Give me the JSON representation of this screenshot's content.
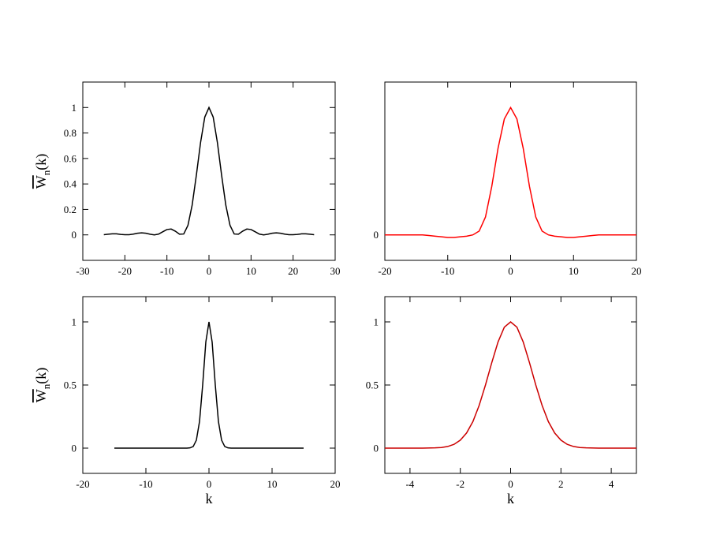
{
  "chart_data": [
    {
      "type": "line",
      "color": "#000000",
      "x": [
        -25,
        -24,
        -23,
        -22,
        -21,
        -20,
        -19,
        -18,
        -17,
        -16,
        -15,
        -14,
        -13,
        -12,
        -11,
        -10,
        -9,
        -8,
        -7,
        -6,
        -5,
        -4,
        -3,
        -2,
        -1,
        0,
        1,
        2,
        3,
        4,
        5,
        6,
        7,
        8,
        9,
        10,
        11,
        12,
        13,
        14,
        15,
        16,
        17,
        18,
        19,
        20,
        21,
        22,
        23,
        24,
        25
      ],
      "values": [
        0.001,
        0.005,
        0.008,
        0.008,
        0.004,
        0.001,
        0.001,
        0.006,
        0.013,
        0.016,
        0.013,
        0.005,
        0,
        0.006,
        0.024,
        0.042,
        0.046,
        0.029,
        0.005,
        0.007,
        0.075,
        0.234,
        0.469,
        0.725,
        0.925,
        1,
        0.925,
        0.725,
        0.469,
        0.234,
        0.075,
        0.007,
        0.005,
        0.029,
        0.046,
        0.042,
        0.024,
        0.006,
        0,
        0.005,
        0.013,
        0.016,
        0.013,
        0.006,
        0.001,
        0.001,
        0.004,
        0.008,
        0.008,
        0.005,
        0.001
      ],
      "xlim": [
        -30,
        30
      ],
      "xticks": [
        -30,
        -20,
        -10,
        0,
        10,
        20,
        30
      ],
      "ylim": [
        -0.2,
        1.2
      ],
      "yticks": [
        0,
        0.2,
        0.4,
        0.6,
        0.8,
        1
      ],
      "ylabel": "W",
      "ylabel_sub": "n",
      "ylabel_suffix": "(k)"
    },
    {
      "type": "line",
      "color": "#ff0000",
      "x": [
        -20,
        -19,
        -18,
        -17,
        -16,
        -15,
        -14,
        -13,
        -12,
        -11,
        -10,
        -9,
        -8,
        -7,
        -6,
        -5,
        -4,
        -3,
        -2,
        -1,
        0,
        1,
        2,
        3,
        4,
        5,
        6,
        7,
        8,
        9,
        10,
        11,
        12,
        13,
        14,
        15,
        16,
        17,
        18,
        19,
        20
      ],
      "values": [
        0,
        0,
        0,
        0,
        0,
        0,
        0,
        -0.005,
        -0.01,
        -0.015,
        -0.02,
        -0.02,
        -0.015,
        -0.01,
        0,
        0.03,
        0.14,
        0.38,
        0.68,
        0.91,
        1,
        0.91,
        0.68,
        0.38,
        0.14,
        0.03,
        0,
        -0.01,
        -0.015,
        -0.02,
        -0.02,
        -0.015,
        -0.01,
        -0.005,
        0,
        0,
        0,
        0,
        0,
        0,
        0
      ],
      "xlim": [
        -20,
        20
      ],
      "xticks": [
        -20,
        -10,
        0,
        10,
        20
      ],
      "ylim": [
        -0.2,
        1.2
      ],
      "yticks": [
        0
      ]
    },
    {
      "type": "line",
      "color": "#000000",
      "x": [
        -15,
        -10,
        -5,
        -4,
        -3.5,
        -3,
        -2.5,
        -2,
        -1.5,
        -1,
        -0.5,
        0,
        0.5,
        1,
        1.5,
        2,
        2.5,
        3,
        3.5,
        4,
        5,
        10,
        15
      ],
      "values": [
        0,
        0,
        0,
        0,
        0,
        0.002,
        0.013,
        0.063,
        0.21,
        0.5,
        0.841,
        1,
        0.841,
        0.5,
        0.21,
        0.063,
        0.013,
        0.002,
        0,
        0,
        0,
        0,
        0
      ],
      "xlim": [
        -20,
        20
      ],
      "xticks": [
        -20,
        -10,
        0,
        10,
        20
      ],
      "ylim": [
        -0.2,
        1.2
      ],
      "yticks": [
        0,
        0.5,
        1
      ],
      "xlabel": "k",
      "ylabel": "W",
      "ylabel_sub": "n",
      "ylabel_suffix": "(k)"
    },
    {
      "type": "line",
      "color": "#cc0000",
      "x": [
        -5,
        -4.5,
        -4,
        -3.5,
        -3,
        -2.75,
        -2.5,
        -2.25,
        -2,
        -1.75,
        -1.5,
        -1.25,
        -1,
        -0.75,
        -0.5,
        -0.25,
        0,
        0.25,
        0.5,
        0.75,
        1,
        1.25,
        1.5,
        1.75,
        2,
        2.25,
        2.5,
        2.75,
        3,
        3.5,
        4,
        4.5,
        5
      ],
      "values": [
        0,
        0,
        0,
        0,
        0.002,
        0.005,
        0.013,
        0.03,
        0.063,
        0.12,
        0.21,
        0.339,
        0.5,
        0.677,
        0.841,
        0.958,
        1,
        0.958,
        0.841,
        0.677,
        0.5,
        0.339,
        0.21,
        0.12,
        0.063,
        0.03,
        0.013,
        0.005,
        0.002,
        0,
        0,
        0,
        0
      ],
      "xlim": [
        -5,
        5
      ],
      "xticks": [
        -4,
        -2,
        0,
        2,
        4
      ],
      "ylim": [
        -0.2,
        1.2
      ],
      "yticks": [
        0,
        0.5,
        1
      ],
      "xlabel": "k"
    }
  ]
}
